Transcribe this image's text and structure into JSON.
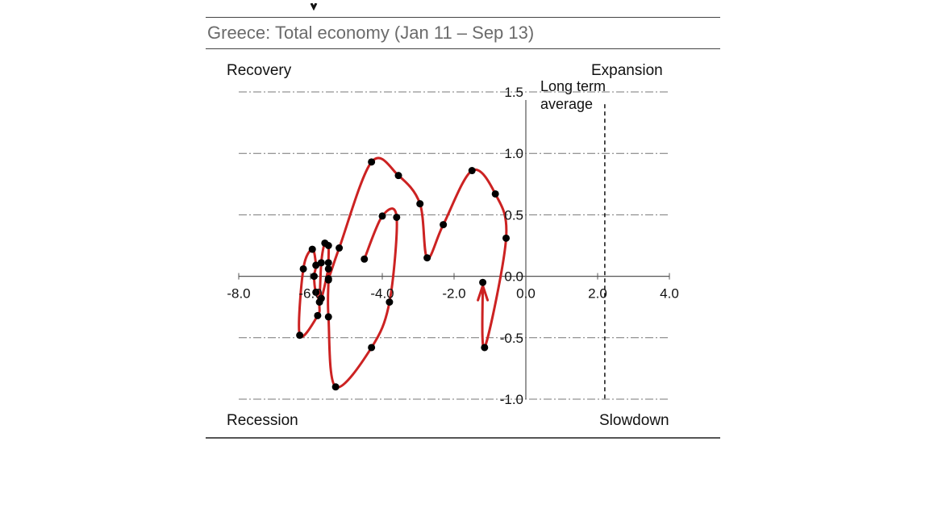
{
  "figure": {
    "subtitle": "Greece: Total economy (Jan 11 – Sep 13)",
    "quadrants": {
      "top_left": "Recovery",
      "top_right": "Expansion",
      "bottom_left": "Recession",
      "bottom_right": "Slowdown"
    },
    "annotation": {
      "line1": "Long term",
      "line2": "average"
    }
  },
  "chart_data": {
    "type": "scatter",
    "xlim": [
      -8.0,
      4.0
    ],
    "ylim": [
      -1.0,
      1.5
    ],
    "x_ticks": [
      "-8.0",
      "-6.0",
      "-4.0",
      "-2.0",
      "0.0",
      "2.0",
      "4.0"
    ],
    "y_ticks": [
      "-1.0",
      "-0.5",
      "0.0",
      "0.5",
      "1.0",
      "1.5"
    ],
    "grid": true,
    "reference_line_x": 2.2,
    "line_color": "#cc2222",
    "marker_color": "#000000",
    "points": [
      {
        "x": -4.5,
        "y": 0.14
      },
      {
        "x": -4.0,
        "y": 0.49
      },
      {
        "x": -3.6,
        "y": 0.48
      },
      {
        "x": -3.8,
        "y": -0.21
      },
      {
        "x": -4.3,
        "y": -0.58
      },
      {
        "x": -5.3,
        "y": -0.9
      },
      {
        "x": -5.5,
        "y": -0.33
      },
      {
        "x": -5.5,
        "y": -0.03
      },
      {
        "x": -5.5,
        "y": 0.11
      },
      {
        "x": -5.5,
        "y": 0.25
      },
      {
        "x": -5.6,
        "y": 0.27
      },
      {
        "x": -5.7,
        "y": 0.11
      },
      {
        "x": -5.75,
        "y": -0.21
      },
      {
        "x": -5.8,
        "y": -0.32
      },
      {
        "x": -6.3,
        "y": -0.48
      },
      {
        "x": -6.2,
        "y": 0.06
      },
      {
        "x": -5.95,
        "y": 0.22
      },
      {
        "x": -5.85,
        "y": 0.09
      },
      {
        "x": -5.9,
        "y": 0.0
      },
      {
        "x": -5.85,
        "y": -0.13
      },
      {
        "x": -5.7,
        "y": -0.18
      },
      {
        "x": -5.5,
        "y": 0.06
      },
      {
        "x": -5.5,
        "y": -0.02
      },
      {
        "x": -5.2,
        "y": 0.23
      },
      {
        "x": -4.3,
        "y": 0.93
      },
      {
        "x": -3.55,
        "y": 0.82
      },
      {
        "x": -2.95,
        "y": 0.59
      },
      {
        "x": -2.75,
        "y": 0.15
      },
      {
        "x": -2.3,
        "y": 0.42
      },
      {
        "x": -1.5,
        "y": 0.86
      },
      {
        "x": -0.85,
        "y": 0.67
      },
      {
        "x": -0.55,
        "y": 0.31
      },
      {
        "x": -1.15,
        "y": -0.58
      },
      {
        "x": -1.2,
        "y": -0.05
      }
    ]
  }
}
